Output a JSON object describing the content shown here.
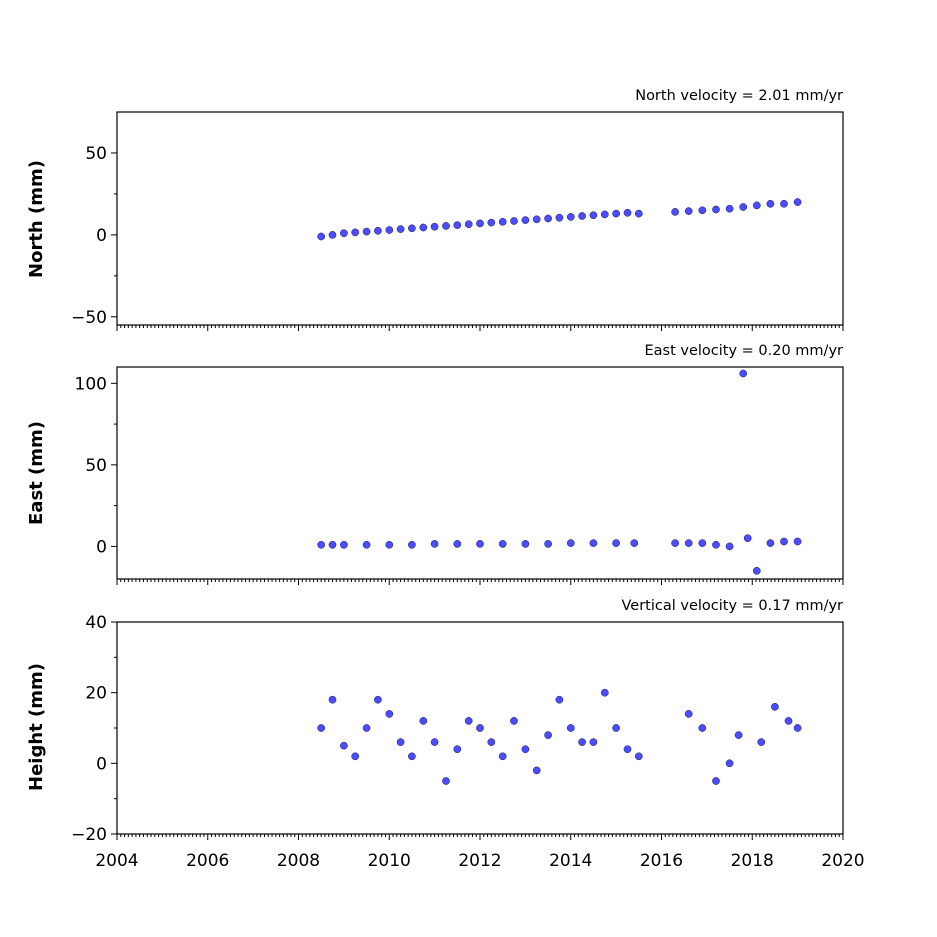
{
  "chart_data": [
    {
      "type": "scatter",
      "title": "North velocity = 2.01 mm/yr",
      "ylabel": "North (mm)",
      "xlim": [
        2004,
        2020
      ],
      "ylim": [
        -55,
        75
      ],
      "yticks": [
        -50,
        0,
        50
      ],
      "yticklabels": [
        "−50",
        "0",
        "50"
      ],
      "series": [
        {
          "x": [
            2008.5,
            2008.75,
            2009.0,
            2009.25,
            2009.5,
            2009.75,
            2010.0,
            2010.25,
            2010.5,
            2010.75,
            2011.0,
            2011.25,
            2011.5,
            2011.75,
            2012.0,
            2012.25,
            2012.5,
            2012.75,
            2013.0,
            2013.25,
            2013.5,
            2013.75,
            2014.0,
            2014.25,
            2014.5,
            2014.75,
            2015.0,
            2015.25,
            2015.5,
            2016.3,
            2016.6,
            2016.9,
            2017.2,
            2017.5,
            2017.8,
            2018.1,
            2018.4,
            2018.7,
            2019.0
          ],
          "y": [
            -1,
            0,
            1,
            1.5,
            2,
            2.5,
            3,
            3.5,
            4,
            4.5,
            5,
            5.5,
            6,
            6.5,
            7,
            7.5,
            8,
            8.5,
            9,
            9.5,
            10,
            10.5,
            11,
            11.5,
            12,
            12.5,
            13,
            13.5,
            13,
            14,
            14.5,
            15,
            15.5,
            16,
            17,
            18,
            19,
            19,
            20
          ]
        }
      ]
    },
    {
      "type": "scatter",
      "title": "East velocity = 0.20 mm/yr",
      "ylabel": "East (mm)",
      "xlim": [
        2004,
        2020
      ],
      "ylim": [
        -20,
        110
      ],
      "yticks": [
        0,
        50,
        100
      ],
      "yticklabels": [
        "0",
        "50",
        "100"
      ],
      "series": [
        {
          "x": [
            2008.5,
            2008.75,
            2009.0,
            2009.5,
            2010.0,
            2010.5,
            2011.0,
            2011.5,
            2012.0,
            2012.5,
            2013.0,
            2013.5,
            2014.0,
            2014.5,
            2015.0,
            2015.4,
            2016.3,
            2016.6,
            2016.9,
            2017.2,
            2017.5,
            2017.9,
            2018.1,
            2018.4,
            2018.7,
            2019.0
          ],
          "y": [
            1,
            1,
            1,
            1,
            1,
            1,
            1.5,
            1.5,
            1.5,
            1.5,
            1.5,
            1.5,
            2,
            2,
            2,
            2,
            2,
            2,
            2,
            1,
            0,
            5,
            -15,
            2,
            3,
            3
          ]
        },
        {
          "x": [
            2017.8
          ],
          "y": [
            106
          ]
        }
      ]
    },
    {
      "type": "scatter",
      "title": "Vertical velocity = 0.17 mm/yr",
      "ylabel": "Height (mm)",
      "xlim": [
        2004,
        2020
      ],
      "ylim": [
        -20,
        40
      ],
      "yticks": [
        -20,
        0,
        20,
        40
      ],
      "yticklabels": [
        "−20",
        "0",
        "20",
        "40"
      ],
      "xticks": [
        2004,
        2006,
        2008,
        2010,
        2012,
        2014,
        2016,
        2018,
        2020
      ],
      "xticklabels": [
        "2004",
        "2006",
        "2008",
        "2010",
        "2012",
        "2014",
        "2016",
        "2018",
        "2020"
      ],
      "series": [
        {
          "x": [
            2008.5,
            2008.75,
            2009.0,
            2009.25,
            2009.5,
            2009.75,
            2010.0,
            2010.25,
            2010.5,
            2010.75,
            2011.0,
            2011.25,
            2011.5,
            2011.75,
            2012.0,
            2012.25,
            2012.5,
            2012.75,
            2013.0,
            2013.25,
            2013.5,
            2013.75,
            2014.0,
            2014.25,
            2014.5,
            2014.75,
            2015.0,
            2015.25,
            2015.5,
            2016.6,
            2016.9,
            2017.2,
            2017.5,
            2017.7,
            2018.2,
            2018.5,
            2018.8,
            2019.0
          ],
          "y": [
            10,
            18,
            5,
            2,
            10,
            18,
            14,
            6,
            2,
            12,
            6,
            -5,
            4,
            12,
            10,
            6,
            2,
            12,
            4,
            -2,
            8,
            18,
            10,
            6,
            6,
            20,
            10,
            4,
            2,
            14,
            10,
            -5,
            0,
            8,
            6,
            16,
            12,
            10
          ]
        }
      ]
    }
  ]
}
